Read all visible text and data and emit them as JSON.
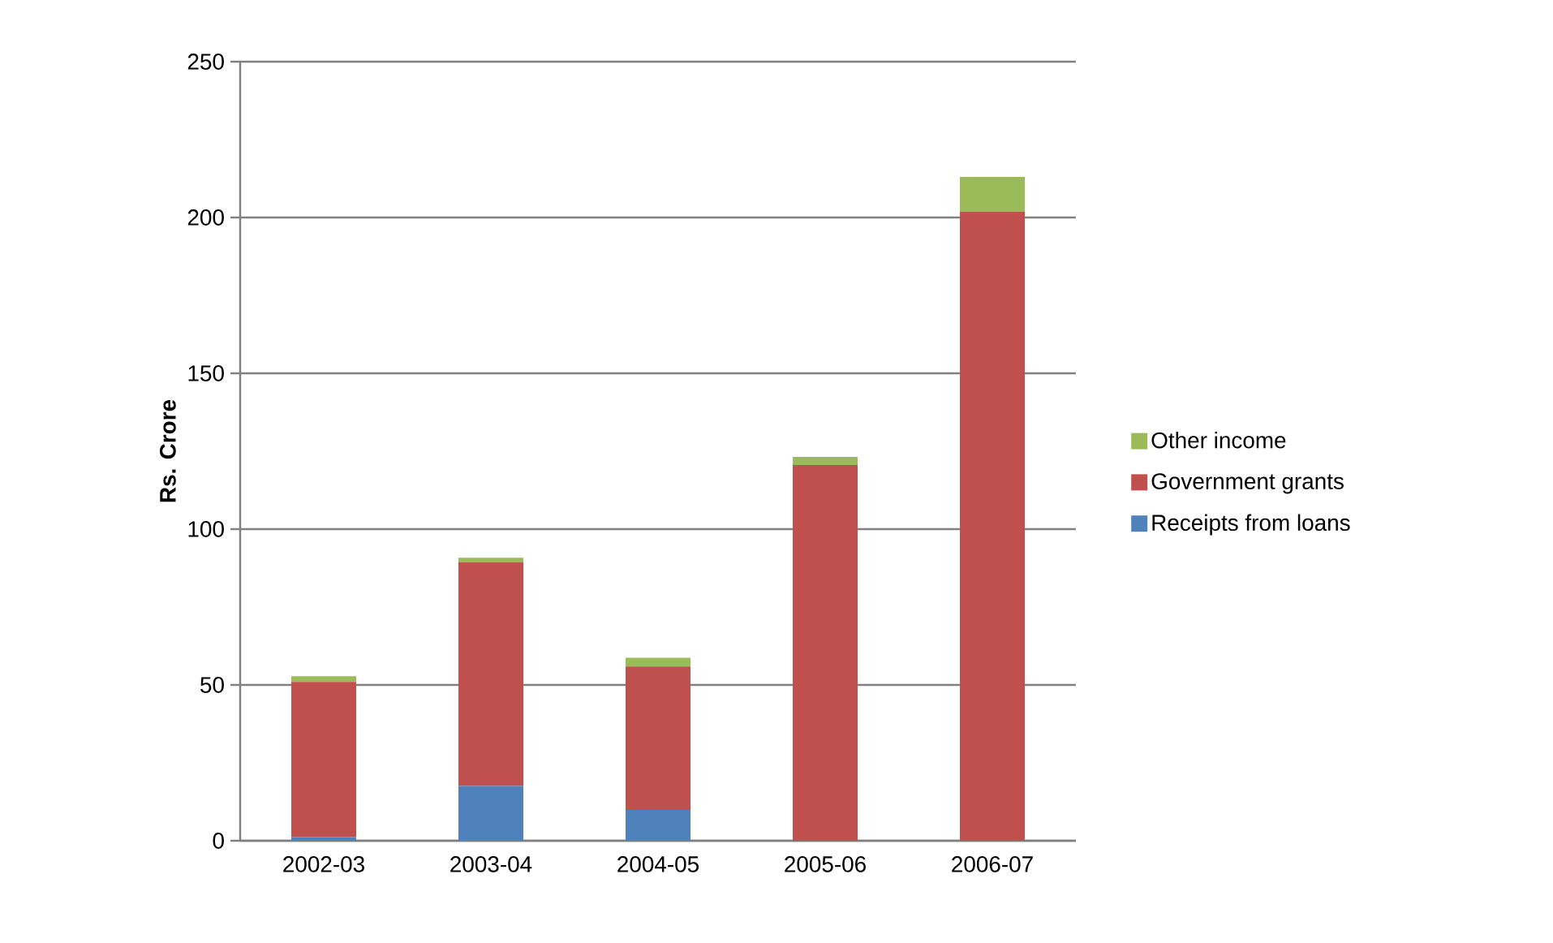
{
  "chart_data": {
    "type": "bar",
    "stacked": true,
    "ylabel": "Rs. Crore",
    "categories": [
      "2002-03",
      "2003-04",
      "2004-05",
      "2005-06",
      "2006-07"
    ],
    "series": [
      {
        "name": "Receipts from loans",
        "color": "#4f81bd",
        "values": [
          1.2,
          17.6,
          9.9,
          0,
          0
        ]
      },
      {
        "name": "Government grants",
        "color": "#c0504d",
        "values": [
          49.8,
          71.8,
          46.0,
          120.6,
          201.9
        ]
      },
      {
        "name": "Other income",
        "color": "#9bbb59",
        "values": [
          1.8,
          1.4,
          2.8,
          2.6,
          11.1
        ]
      }
    ],
    "ylim": [
      0,
      250
    ],
    "yticks": [
      0,
      50,
      100,
      150,
      200,
      250
    ],
    "grid": "y",
    "legend": "right"
  }
}
